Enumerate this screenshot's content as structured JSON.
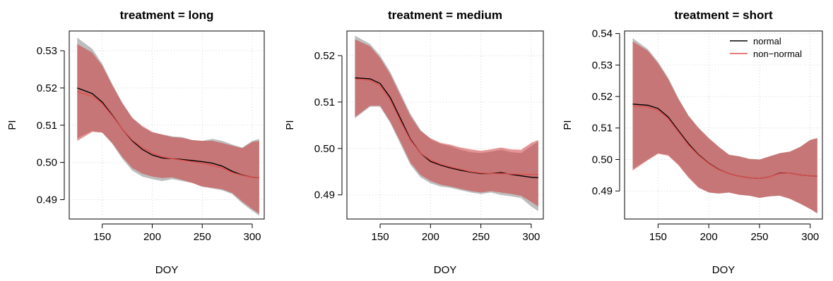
{
  "chart_data": [
    {
      "type": "area",
      "title": "treatment = long",
      "xlabel": "DOY",
      "ylabel": "PI",
      "xlim": [
        117,
        312
      ],
      "ylim": [
        0.4848,
        0.5353
      ],
      "xticks": [
        150,
        200,
        250,
        300
      ],
      "yticks": [
        0.49,
        0.5,
        0.51,
        0.52,
        0.53
      ],
      "ytick_labels": [
        "0.49",
        "0.50",
        "0.51",
        "0.52",
        "0.53"
      ],
      "grid": true,
      "series": [
        {
          "name": "normal",
          "color": "#000000",
          "band_color": "#bdbdbd",
          "x": [
            125,
            140,
            150,
            160,
            170,
            180,
            190,
            200,
            210,
            220,
            230,
            240,
            250,
            260,
            270,
            280,
            290,
            300,
            307
          ],
          "y": [
            0.52,
            0.5185,
            0.5162,
            0.5127,
            0.509,
            0.5058,
            0.5035,
            0.502,
            0.5012,
            0.501,
            0.5008,
            0.5005,
            0.5002,
            0.4998,
            0.499,
            0.4976,
            0.4966,
            0.496,
            0.4959
          ],
          "lower": [
            0.5065,
            0.5085,
            0.508,
            0.505,
            0.501,
            0.4978,
            0.4962,
            0.4955,
            0.495,
            0.4955,
            0.495,
            0.4945,
            0.4935,
            0.493,
            0.4925,
            0.4915,
            0.489,
            0.487,
            0.4857
          ],
          "upper": [
            0.5335,
            0.5305,
            0.5265,
            0.521,
            0.516,
            0.512,
            0.5095,
            0.508,
            0.5075,
            0.507,
            0.5068,
            0.506,
            0.5058,
            0.5063,
            0.5058,
            0.5048,
            0.504,
            0.5058,
            0.5063
          ]
        },
        {
          "name": "non-normal",
          "color": "#e05050",
          "band_color": "rgba(205,60,60,0.55)",
          "x": [
            125,
            140,
            150,
            160,
            170,
            180,
            190,
            200,
            210,
            220,
            230,
            240,
            250,
            260,
            270,
            280,
            290,
            300,
            307
          ],
          "y": [
            0.519,
            0.5178,
            0.5158,
            0.5125,
            0.509,
            0.506,
            0.504,
            0.5025,
            0.5015,
            0.501,
            0.5006,
            0.5002,
            0.4998,
            0.4992,
            0.4985,
            0.4973,
            0.4965,
            0.496,
            0.4959
          ],
          "lower": [
            0.5058,
            0.5082,
            0.508,
            0.5052,
            0.5015,
            0.4985,
            0.497,
            0.4962,
            0.4958,
            0.496,
            0.4953,
            0.4945,
            0.4935,
            0.4932,
            0.4928,
            0.4918,
            0.4895,
            0.4875,
            0.4862
          ],
          "upper": [
            0.5318,
            0.5295,
            0.526,
            0.5208,
            0.516,
            0.512,
            0.5098,
            0.5082,
            0.5075,
            0.5068,
            0.5066,
            0.506,
            0.5058,
            0.5058,
            0.5052,
            0.5045,
            0.5038,
            0.5055,
            0.5058
          ]
        }
      ]
    },
    {
      "type": "area",
      "title": "treatment = medium",
      "xlabel": "DOY",
      "ylabel": "PI",
      "xlim": [
        117,
        312
      ],
      "ylim": [
        0.4848,
        0.5253
      ],
      "xticks": [
        150,
        200,
        250,
        300
      ],
      "yticks": [
        0.49,
        0.5,
        0.51,
        0.52
      ],
      "ytick_labels": [
        "0.49",
        "0.50",
        "0.51",
        "0.52"
      ],
      "grid": true,
      "series": [
        {
          "name": "normal",
          "color": "#000000",
          "band_color": "#bdbdbd",
          "x": [
            125,
            140,
            150,
            160,
            170,
            180,
            190,
            200,
            210,
            220,
            230,
            240,
            250,
            260,
            270,
            280,
            290,
            300,
            307
          ],
          "y": [
            0.5152,
            0.515,
            0.514,
            0.511,
            0.5065,
            0.502,
            0.499,
            0.4972,
            0.4964,
            0.4958,
            0.4953,
            0.4949,
            0.4946,
            0.4946,
            0.4948,
            0.4944,
            0.4941,
            0.4938,
            0.4937
          ],
          "lower": [
            0.5065,
            0.509,
            0.509,
            0.5055,
            0.501,
            0.4965,
            0.4938,
            0.4925,
            0.4918,
            0.4915,
            0.491,
            0.4905,
            0.4902,
            0.4905,
            0.49,
            0.4897,
            0.4893,
            0.4875,
            0.4865
          ],
          "upper": [
            0.5243,
            0.5225,
            0.52,
            0.5165,
            0.512,
            0.5075,
            0.504,
            0.502,
            0.501,
            0.5005,
            0.4997,
            0.4992,
            0.499,
            0.4993,
            0.4997,
            0.4992,
            0.499,
            0.5005,
            0.5015
          ]
        },
        {
          "name": "non-normal",
          "color": "#e05050",
          "band_color": "rgba(205,60,60,0.55)",
          "x": [
            125,
            140,
            150,
            160,
            170,
            180,
            190,
            200,
            210,
            220,
            230,
            240,
            250,
            260,
            270,
            280,
            290,
            300,
            307
          ],
          "y": [
            0.515,
            0.5147,
            0.5135,
            0.5105,
            0.506,
            0.5018,
            0.499,
            0.4975,
            0.4966,
            0.496,
            0.4955,
            0.495,
            0.4947,
            0.4946,
            0.4946,
            0.4945,
            0.4944,
            0.4944,
            0.4944
          ],
          "lower": [
            0.5068,
            0.5092,
            0.5092,
            0.5058,
            0.5015,
            0.497,
            0.4943,
            0.493,
            0.4922,
            0.4918,
            0.4913,
            0.4908,
            0.4905,
            0.4908,
            0.4905,
            0.4902,
            0.4898,
            0.4885,
            0.4875
          ],
          "upper": [
            0.5235,
            0.522,
            0.5195,
            0.516,
            0.5115,
            0.507,
            0.5038,
            0.5022,
            0.5012,
            0.5008,
            0.5002,
            0.4998,
            0.4995,
            0.4998,
            0.5002,
            0.4998,
            0.4997,
            0.5012,
            0.5018
          ]
        }
      ]
    },
    {
      "type": "area",
      "title": "treatment = short",
      "xlabel": "DOY",
      "ylabel": "PI",
      "xlim": [
        117,
        312
      ],
      "ylim": [
        0.4811,
        0.5408
      ],
      "xticks": [
        150,
        200,
        250,
        300
      ],
      "yticks": [
        0.49,
        0.5,
        0.51,
        0.52,
        0.53,
        0.54
      ],
      "ytick_labels": [
        "0.49",
        "0.50",
        "0.51",
        "0.52",
        "0.53",
        "0.54"
      ],
      "grid": true,
      "legend": {
        "placement": "top-right",
        "entries": [
          "normal",
          "non−normal"
        ]
      },
      "series": [
        {
          "name": "normal",
          "color": "#000000",
          "band_color": "#bdbdbd",
          "x": [
            125,
            140,
            150,
            160,
            170,
            180,
            190,
            200,
            210,
            220,
            230,
            240,
            250,
            260,
            270,
            280,
            290,
            300,
            307
          ],
          "y": [
            0.5176,
            0.5172,
            0.5162,
            0.5135,
            0.5092,
            0.505,
            0.5015,
            0.4988,
            0.4968,
            0.4955,
            0.4947,
            0.4942,
            0.494,
            0.4945,
            0.4957,
            0.4957,
            0.4951,
            0.4948,
            0.4947
          ],
          "lower": [
            0.497,
            0.5,
            0.502,
            0.5015,
            0.4985,
            0.4945,
            0.4912,
            0.4895,
            0.4892,
            0.4895,
            0.4888,
            0.4885,
            0.4878,
            0.4883,
            0.4885,
            0.4875,
            0.486,
            0.4843,
            0.4828
          ],
          "upper": [
            0.5385,
            0.535,
            0.531,
            0.526,
            0.5195,
            0.514,
            0.51,
            0.5068,
            0.504,
            0.5015,
            0.501,
            0.5002,
            0.5,
            0.501,
            0.502,
            0.5025,
            0.504,
            0.5062,
            0.5068
          ]
        },
        {
          "name": "non-normal",
          "color": "#e05050",
          "band_color": "rgba(205,60,60,0.55)",
          "x": [
            125,
            140,
            150,
            160,
            170,
            180,
            190,
            200,
            210,
            220,
            230,
            240,
            250,
            260,
            270,
            280,
            290,
            300,
            307
          ],
          "y": [
            0.517,
            0.5166,
            0.5156,
            0.513,
            0.5088,
            0.5046,
            0.5013,
            0.4987,
            0.4967,
            0.4955,
            0.4947,
            0.4942,
            0.494,
            0.4945,
            0.4956,
            0.4957,
            0.4951,
            0.4948,
            0.4947
          ],
          "lower": [
            0.4965,
            0.4998,
            0.5018,
            0.5012,
            0.4982,
            0.4942,
            0.491,
            0.4895,
            0.4892,
            0.4895,
            0.4888,
            0.4885,
            0.4878,
            0.4883,
            0.4885,
            0.4875,
            0.486,
            0.4843,
            0.483
          ],
          "upper": [
            0.5375,
            0.5345,
            0.5305,
            0.5255,
            0.5192,
            0.5138,
            0.51,
            0.5068,
            0.504,
            0.5015,
            0.501,
            0.5002,
            0.5,
            0.501,
            0.502,
            0.5025,
            0.504,
            0.5062,
            0.5068
          ]
        }
      ]
    }
  ]
}
